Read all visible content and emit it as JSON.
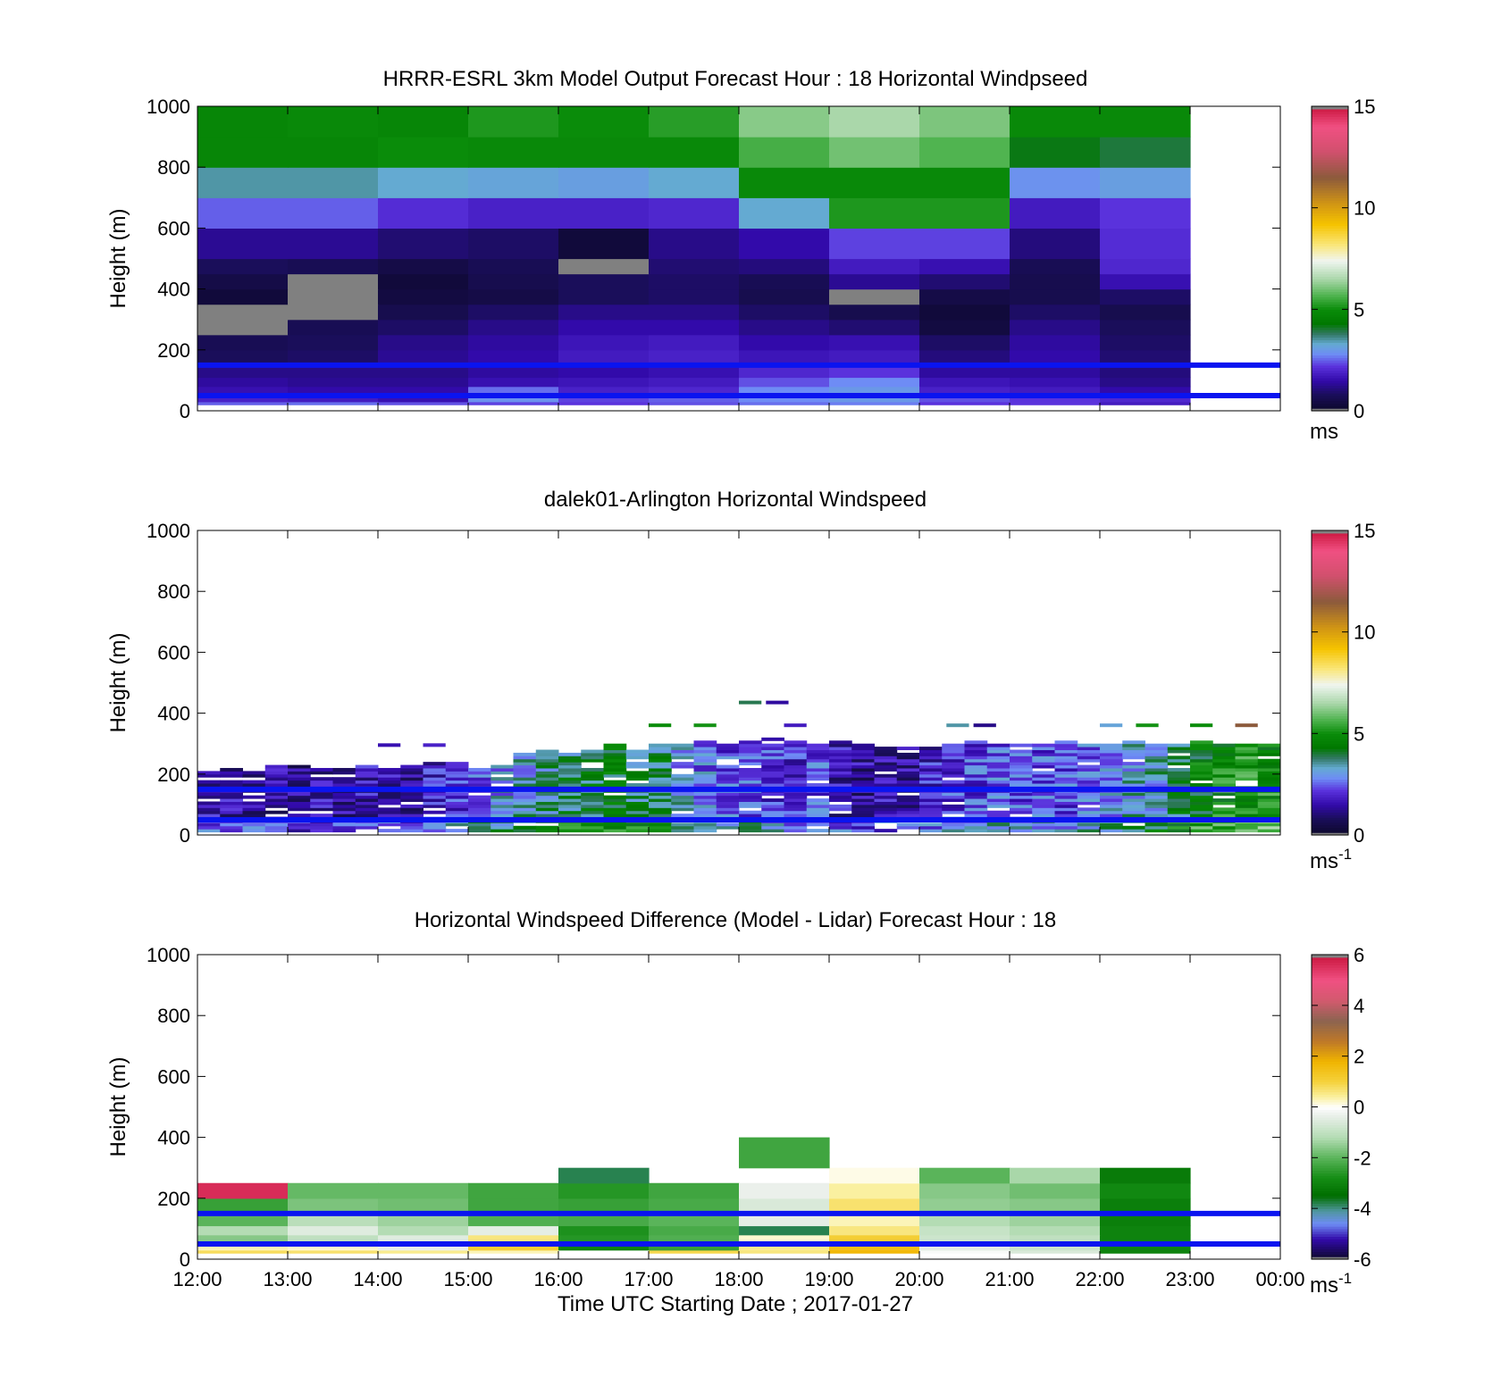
{
  "figure": {
    "xlabel": "Time UTC  Starting Date ; 2017-01-27",
    "x_tick_labels": [
      "12:00",
      "13:00",
      "14:00",
      "15:00",
      "16:00",
      "17:00",
      "18:00",
      "19:00",
      "20:00",
      "21:00",
      "22:00",
      "23:00",
      "00:00"
    ]
  },
  "colors": {
    "reference_line": "#0a14f0",
    "missing": "#808080"
  },
  "chart_data": [
    {
      "type": "heatmap",
      "title": "HRRR-ESRL 3km Model Output   Forecast Hour : 18 Horizontal Windpseed",
      "ylabel": "Height (m)",
      "ylim": [
        0,
        1000
      ],
      "y_ticks": [
        "0",
        "200",
        "400",
        "600",
        "800",
        "1000"
      ],
      "xlim_hours": [
        12,
        24
      ],
      "clim": [
        0,
        15
      ],
      "colorbar_ticks": [
        "0",
        "5",
        "10",
        "15"
      ],
      "colorbar_unit": "ms",
      "reference_lines_m": [
        150,
        50
      ],
      "columns_start_hour": [
        12,
        13,
        14,
        15,
        16,
        17,
        18,
        19,
        20,
        21,
        22
      ],
      "column_width_h": 1,
      "levels": [
        {
          "h0": 20,
          "h1": 30
        },
        {
          "h0": 30,
          "h1": 50
        },
        {
          "h0": 50,
          "h1": 80
        },
        {
          "h0": 80,
          "h1": 110
        },
        {
          "h0": 110,
          "h1": 150
        },
        {
          "h0": 150,
          "h1": 200
        },
        {
          "h0": 200,
          "h1": 250
        },
        {
          "h0": 250,
          "h1": 300
        },
        {
          "h0": 300,
          "h1": 350
        },
        {
          "h0": 350,
          "h1": 400
        },
        {
          "h0": 400,
          "h1": 450
        },
        {
          "h0": 450,
          "h1": 500
        },
        {
          "h0": 500,
          "h1": 600
        },
        {
          "h0": 600,
          "h1": 700
        },
        {
          "h0": 700,
          "h1": 800
        },
        {
          "h0": 800,
          "h1": 900
        },
        {
          "h0": 900,
          "h1": 1000
        }
      ],
      "values": [
        [
          2.5,
          2.6,
          2.4,
          2.3,
          2.2,
          2.4,
          2.6,
          2.7,
          2.2,
          2.2,
          1.8
        ],
        [
          1.9,
          1.8,
          1.6,
          2.9,
          2.3,
          2.5,
          2.8,
          3.0,
          2.4,
          2.2,
          2.0
        ],
        [
          1.6,
          1.5,
          1.5,
          2.6,
          1.9,
          2.0,
          2.8,
          3.0,
          1.9,
          1.8,
          1.5
        ],
        [
          1.4,
          1.3,
          1.3,
          1.6,
          1.7,
          1.8,
          2.4,
          2.8,
          1.7,
          1.6,
          1.2
        ],
        [
          1.2,
          1.2,
          1.2,
          1.4,
          1.5,
          1.6,
          2.0,
          2.2,
          1.4,
          1.4,
          1.1
        ],
        [
          0.8,
          0.9,
          1.3,
          1.5,
          1.8,
          1.9,
          1.7,
          1.8,
          1.1,
          1.5,
          1.0
        ],
        [
          0.7,
          0.8,
          1.2,
          1.4,
          1.7,
          1.8,
          1.5,
          1.6,
          0.9,
          1.4,
          0.9
        ],
        [
          -1,
          0.7,
          0.9,
          1.2,
          1.5,
          1.5,
          1.2,
          1.0,
          0.4,
          1.2,
          0.8
        ],
        [
          -1,
          -1,
          0.6,
          0.9,
          1.2,
          1.2,
          0.9,
          0.6,
          0.3,
          0.9,
          0.6
        ],
        [
          0.3,
          -1,
          0.4,
          0.5,
          0.8,
          0.9,
          0.6,
          -1,
          0.5,
          0.6,
          0.9
        ],
        [
          0.5,
          -1,
          0.3,
          0.6,
          0.8,
          0.9,
          0.7,
          1.3,
          1.0,
          0.6,
          1.6
        ],
        [
          0.8,
          0.7,
          0.5,
          0.7,
          -1,
          1.0,
          1.1,
          1.8,
          1.6,
          0.7,
          2.0
        ],
        [
          1.3,
          1.3,
          1.0,
          0.9,
          0.3,
          1.2,
          1.5,
          2.3,
          2.3,
          1.1,
          2.1
        ],
        [
          2.5,
          2.5,
          2.1,
          1.9,
          1.9,
          2.0,
          3.3,
          5.2,
          5.2,
          1.8,
          2.2
        ],
        [
          3.5,
          3.5,
          3.3,
          3.2,
          3.1,
          3.3,
          4.9,
          4.9,
          4.9,
          2.9,
          3.1
        ],
        [
          4.8,
          4.8,
          5.0,
          4.9,
          4.9,
          4.9,
          5.6,
          6.0,
          5.7,
          4.2,
          4.0
        ],
        [
          4.8,
          4.9,
          4.8,
          5.2,
          5.0,
          5.3,
          6.2,
          6.5,
          6.1,
          4.9,
          4.9
        ]
      ]
    },
    {
      "type": "heatmap",
      "title": "dalek01-Arlington  Horizontal Windspeed",
      "ylabel": "Height (m)",
      "ylim": [
        0,
        1000
      ],
      "y_ticks": [
        "0",
        "200",
        "400",
        "600",
        "800",
        "1000"
      ],
      "xlim_hours": [
        12,
        24
      ],
      "clim": [
        0,
        15
      ],
      "colorbar_ticks": [
        "0",
        "5",
        "10",
        "15"
      ],
      "colorbar_unit": "ms-1",
      "colorbar_unit_base": "ms",
      "colorbar_unit_exp": "-1",
      "reference_lines_m": [
        150,
        50
      ],
      "time_bins_start_hour": [
        12.0,
        12.25,
        12.5,
        12.75,
        13.0,
        13.25,
        13.5,
        13.75,
        14.0,
        14.25,
        14.5,
        14.75,
        15.0,
        15.25,
        15.5,
        15.75,
        16.0,
        16.25,
        16.5,
        16.75,
        17.0,
        17.25,
        17.5,
        17.75,
        18.0,
        18.25,
        18.5,
        18.75,
        19.0,
        19.25,
        19.5,
        19.75,
        20.0,
        20.25,
        20.5,
        20.75,
        21.0,
        21.25,
        21.5,
        21.75,
        22.0,
        22.25,
        22.5,
        22.75,
        23.0,
        23.25,
        23.5,
        23.75
      ],
      "bin_width_h": 0.25,
      "profile_top_m": [
        210,
        220,
        210,
        225,
        225,
        215,
        215,
        225,
        215,
        230,
        235,
        240,
        220,
        225,
        270,
        280,
        270,
        280,
        300,
        280,
        300,
        300,
        310,
        300,
        310,
        320,
        310,
        300,
        310,
        300,
        290,
        290,
        290,
        295,
        310,
        300,
        305,
        300,
        305,
        300,
        300,
        310,
        300,
        300,
        310,
        300,
        300,
        300
      ],
      "profile_mean_ms": [
        1.6,
        1.5,
        1.5,
        1.4,
        1.3,
        1.5,
        1.4,
        1.6,
        1.7,
        1.5,
        1.8,
        2.1,
        2.6,
        3.0,
        3.3,
        3.6,
        3.9,
        4.0,
        4.2,
        3.9,
        3.9,
        3.2,
        2.6,
        2.4,
        2.5,
        2.2,
        2.0,
        2.3,
        1.6,
        1.4,
        1.5,
        1.5,
        1.8,
        2.1,
        2.3,
        2.4,
        2.4,
        2.3,
        2.3,
        2.5,
        3.0,
        3.3,
        3.4,
        4.0,
        4.5,
        4.9,
        5.1,
        5.0
      ],
      "sparse_points": [
        {
          "t": 18.0,
          "h": 435,
          "v": 3.9
        },
        {
          "t": 18.3,
          "h": 435,
          "v": 1.4
        },
        {
          "t": 14.0,
          "h": 295,
          "v": 1.6
        },
        {
          "t": 14.5,
          "h": 295,
          "v": 1.9
        },
        {
          "t": 17.0,
          "h": 360,
          "v": 5.0
        },
        {
          "t": 17.5,
          "h": 360,
          "v": 5.1
        },
        {
          "t": 18.5,
          "h": 360,
          "v": 1.8
        },
        {
          "t": 20.3,
          "h": 360,
          "v": 3.5
        },
        {
          "t": 20.6,
          "h": 360,
          "v": 1.2
        },
        {
          "t": 22.0,
          "h": 360,
          "v": 3.2
        },
        {
          "t": 22.4,
          "h": 360,
          "v": 5.1
        },
        {
          "t": 23.0,
          "h": 360,
          "v": 5.0
        },
        {
          "t": 23.5,
          "h": 360,
          "v": 11.5
        }
      ]
    },
    {
      "type": "heatmap",
      "title": "Horizontal Windspeed Difference (Model - Lidar) Forecast Hour : 18",
      "ylabel": "Height (m)",
      "ylim": [
        0,
        1000
      ],
      "y_ticks": [
        "0",
        "200",
        "400",
        "600",
        "800",
        "1000"
      ],
      "xlim_hours": [
        12,
        24
      ],
      "clim": [
        -6,
        6
      ],
      "colorbar_ticks": [
        "-6",
        "-4",
        "-2",
        "0",
        "2",
        "4",
        "6"
      ],
      "colorbar_unit": "ms-1",
      "colorbar_unit_base": "ms",
      "colorbar_unit_exp": "-1",
      "reference_lines_m": [
        150,
        50
      ],
      "columns_start_hour": [
        12,
        13,
        14,
        15,
        16,
        17,
        18,
        19,
        20,
        21,
        22
      ],
      "column_width_h": 1,
      "levels": [
        {
          "h0": 20,
          "h1": 30
        },
        {
          "h0": 30,
          "h1": 50
        },
        {
          "h0": 50,
          "h1": 80
        },
        {
          "h0": 80,
          "h1": 110
        },
        {
          "h0": 110,
          "h1": 150
        },
        {
          "h0": 150,
          "h1": 200
        },
        {
          "h0": 200,
          "h1": 250
        },
        {
          "h0": 250,
          "h1": 300
        },
        {
          "h0": 300,
          "h1": 350
        },
        {
          "h0": 350,
          "h1": 400
        }
      ],
      "values": [
        [
          0.8,
          0.7,
          0.5,
          0.3,
          0.0,
          0.9,
          0.6,
          1.7,
          -0.1,
          -0.6,
          -3.0
        ],
        [
          0.3,
          0.2,
          -0.3,
          1.1,
          -3.0,
          -2.4,
          0.5,
          1.5,
          -0.4,
          -0.8,
          -3.0
        ],
        [
          -1.6,
          -1.0,
          -0.5,
          0.6,
          -2.6,
          -2.1,
          0.2,
          1.1,
          -0.8,
          -1.0,
          -3.0
        ],
        [
          -1.2,
          -0.5,
          -1.2,
          -0.4,
          -2.7,
          -2.2,
          -3.8,
          0.6,
          -0.9,
          -1.2,
          -3.0
        ],
        [
          -2.0,
          -1.1,
          -1.4,
          -2.1,
          -2.2,
          -2.0,
          -0.4,
          0.3,
          -1.2,
          -1.4,
          -3.1
        ],
        [
          -2.4,
          -1.7,
          -1.8,
          -2.3,
          -2.4,
          -2.2,
          -0.6,
          0.7,
          -1.5,
          -1.6,
          -3.1
        ],
        [
          5.6,
          -1.9,
          -1.9,
          -2.3,
          -2.6,
          -2.3,
          -0.3,
          0.4,
          -1.6,
          -1.8,
          -2.9
        ],
        [
          null,
          null,
          null,
          null,
          -3.8,
          null,
          null,
          0.1,
          -2.0,
          -1.3,
          -3.2
        ],
        [
          null,
          null,
          null,
          null,
          null,
          null,
          -2.3,
          null,
          null,
          null,
          null
        ],
        [
          null,
          null,
          null,
          null,
          null,
          null,
          -2.3,
          null,
          null,
          null,
          null
        ]
      ]
    }
  ]
}
